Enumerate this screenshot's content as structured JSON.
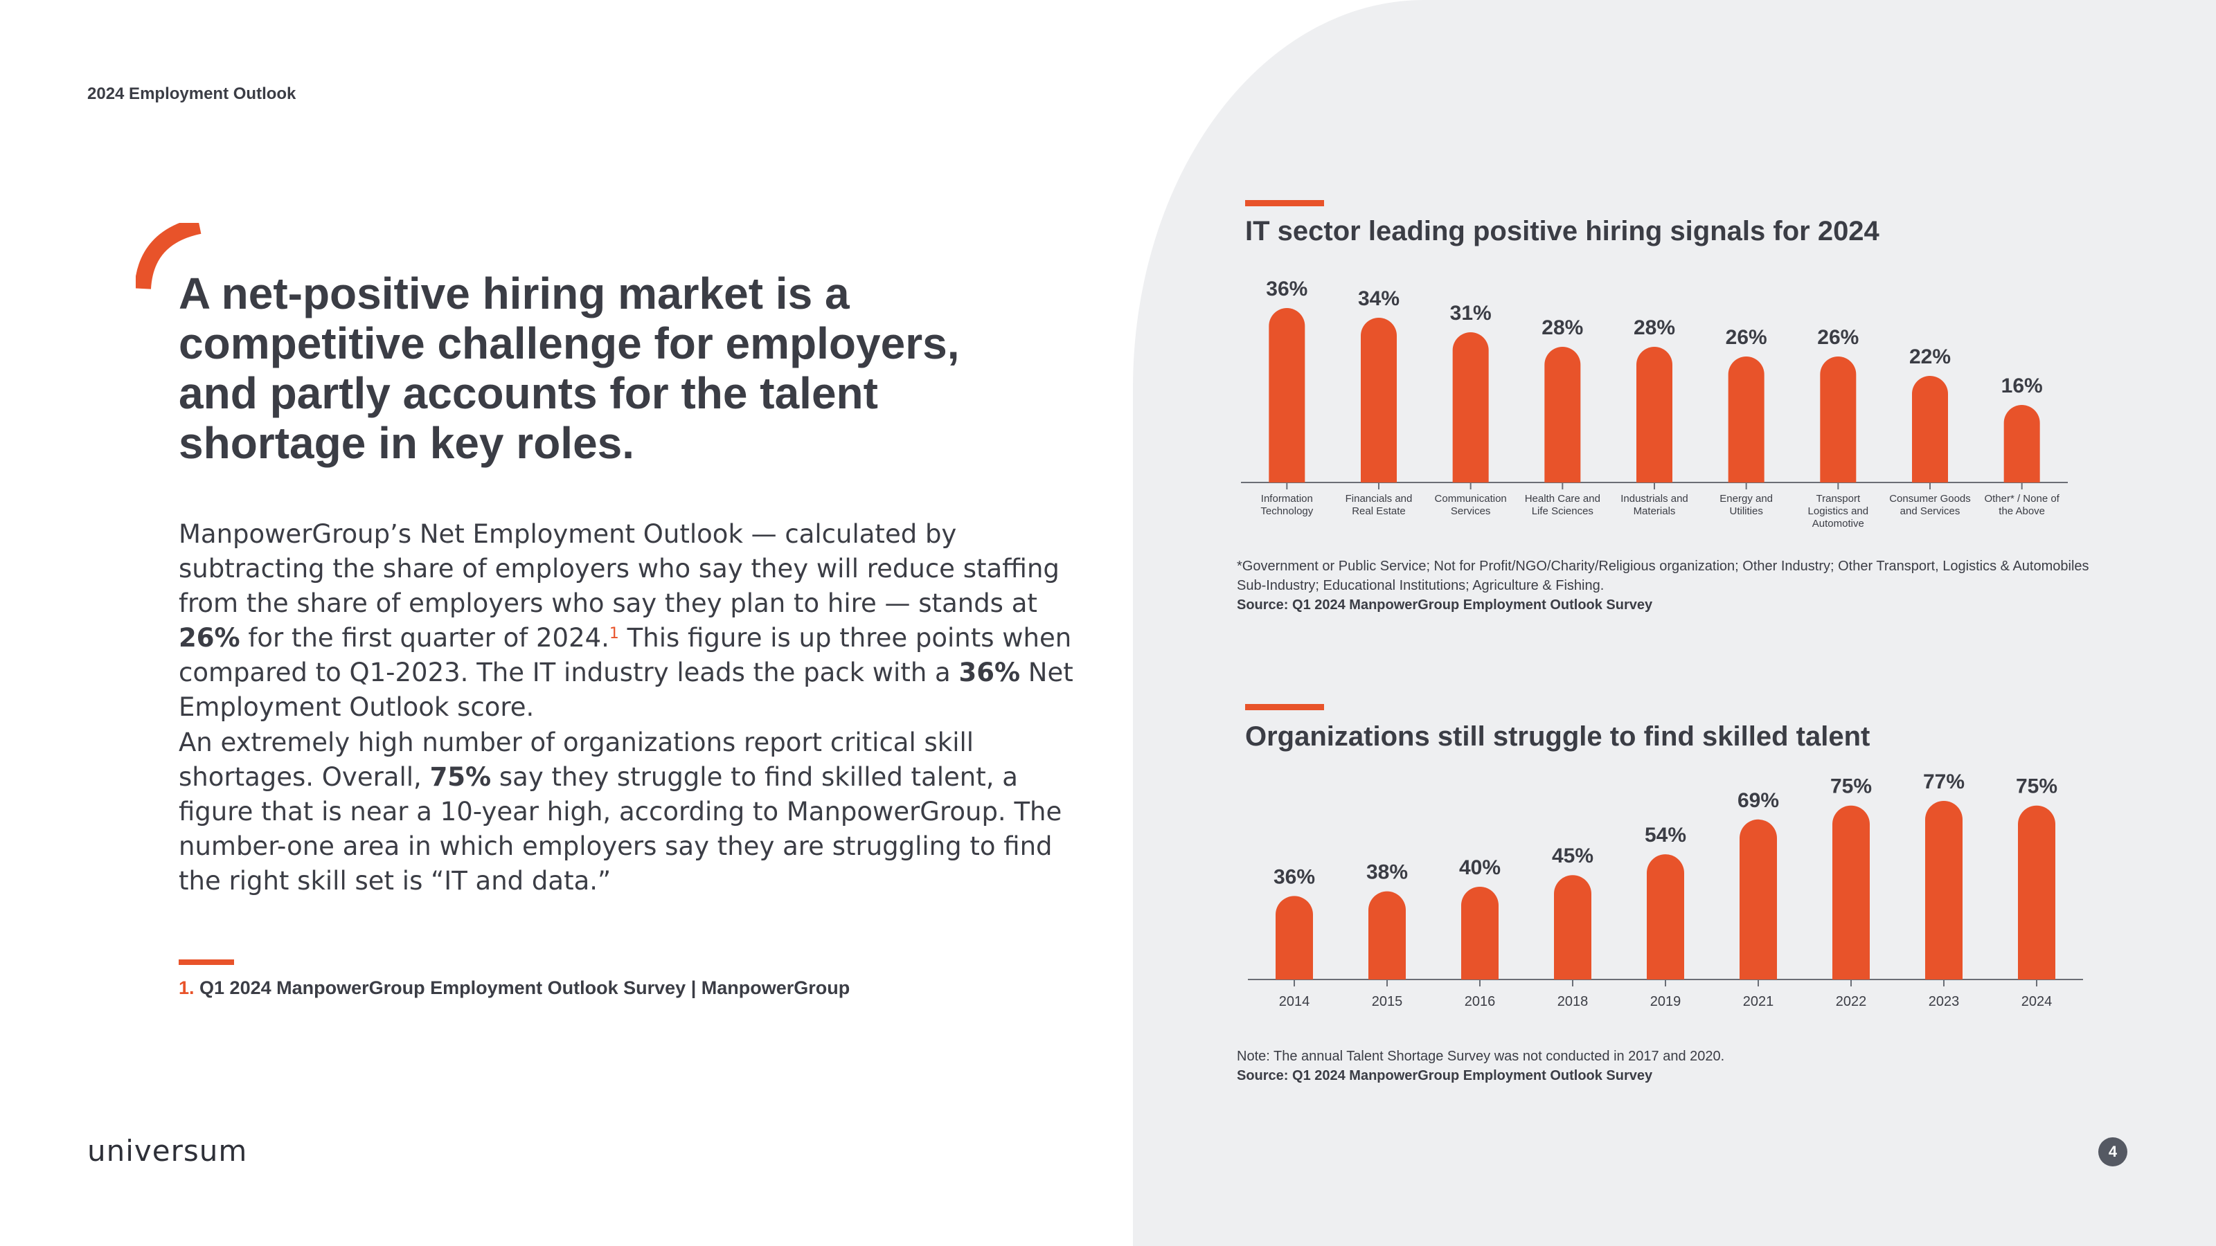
{
  "header": {
    "label": "2024 Employment Outlook"
  },
  "headline": "A net-positive hiring market is a competitive challenge for employers, and partly accounts for the talent shortage in key roles.",
  "body": {
    "p1_a": "ManpowerGroup’s Net Employment Outlook — calculated by subtracting the share of employers who say they will reduce staffing from the share of employers who say they plan to hire — stands at ",
    "p1_b": "26%",
    "p1_c": " for the first quarter of 2024.",
    "p1_ref": "1",
    "p1_d": " This figure is up three points when compared to Q1-2023. The IT industry leads the pack with a ",
    "p1_e": "36%",
    "p1_f": " Net Employment Outlook score.",
    "p2_a": "An extremely high number of organizations report critical skill shortages. Overall, ",
    "p2_b": "75%",
    "p2_c": " say they struggle to find skilled talent, a figure that is near a 10-year high, according to ManpowerGroup. The number-one area  in which employers say they are struggling to find the right skill set  is “IT and data.”"
  },
  "footnote": {
    "num": "1.",
    "text": " Q1 2024 ManpowerGroup Employment Outlook Survey | ManpowerGroup"
  },
  "logo": "universum",
  "page_number": "4",
  "colors": {
    "accent": "#e8532a",
    "text": "#3b3d45",
    "panel": "#eeeff1"
  },
  "chart1": {
    "note": "*Government or Public Service; Not for Profit/NGO/Charity/Religious organization; Other Industry; Other Transport, Logistics & Automobiles Sub-Industry; Educational Institutions; Agriculture & Fishing.",
    "source": "Source: Q1 2024 ManpowerGroup Employment Outlook Survey"
  },
  "chart2": {
    "note": "Note: The annual Talent Shortage Survey was not conducted in 2017 and 2020.",
    "source": "Source: Q1 2024 ManpowerGroup Employment Outlook Survey"
  },
  "chart_data": [
    {
      "type": "bar",
      "title": "IT sector leading positive hiring signals for 2024",
      "categories": [
        [
          "Information",
          "Technology"
        ],
        [
          "Financials and",
          "Real Estate"
        ],
        [
          "Communication",
          "Services"
        ],
        [
          "Health Care and",
          "Life Sciences"
        ],
        [
          "Industrials and",
          "Materials"
        ],
        [
          "Energy and",
          "Utilities"
        ],
        [
          "Transport",
          "Logistics and",
          "Automotive"
        ],
        [
          "Consumer Goods",
          "and Services"
        ],
        [
          "Other* / None of",
          "the Above"
        ]
      ],
      "values": [
        36,
        34,
        31,
        28,
        28,
        26,
        26,
        22,
        16
      ],
      "labels": [
        "36%",
        "34%",
        "31%",
        "28%",
        "28%",
        "26%",
        "26%",
        "22%",
        "16%"
      ],
      "ylim": [
        0,
        36
      ],
      "grid": false,
      "color": "#e8532a"
    },
    {
      "type": "bar",
      "title": "Organizations still struggle to find skilled talent",
      "categories": [
        [
          "2014"
        ],
        [
          "2015"
        ],
        [
          "2016"
        ],
        [
          "2018"
        ],
        [
          "2019"
        ],
        [
          "2021"
        ],
        [
          "2022"
        ],
        [
          "2023"
        ],
        [
          "2024"
        ]
      ],
      "values": [
        36,
        38,
        40,
        45,
        54,
        69,
        75,
        77,
        75
      ],
      "labels": [
        "36%",
        "38%",
        "40%",
        "45%",
        "54%",
        "69%",
        "75%",
        "77%",
        "75%"
      ],
      "ylim": [
        0,
        77
      ],
      "grid": false,
      "color": "#e8532a"
    }
  ]
}
